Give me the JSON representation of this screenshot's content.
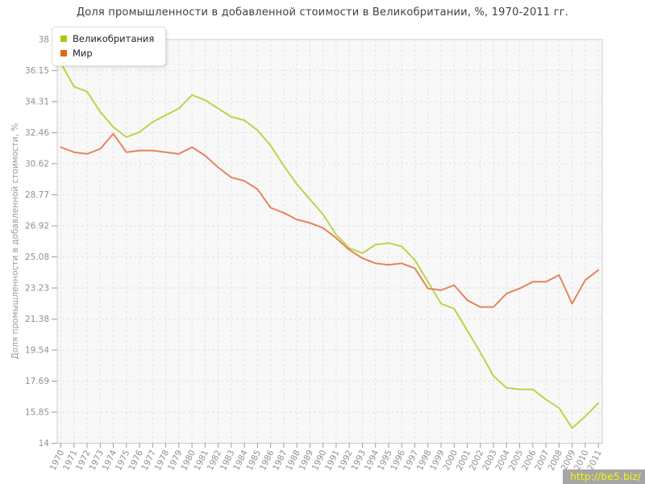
{
  "title": "Доля промышленности в добавленной стоимости в Великобритании, %, 1970-2011 гг.",
  "watermark": "http://be5.biz/",
  "legend": {
    "items": [
      {
        "label": "Великобритания"
      },
      {
        "label": "Мир"
      }
    ]
  },
  "colors": {
    "uk_line": "#bcd44b",
    "uk_swatch": "#a9c813",
    "world_line": "#e5845c",
    "world_swatch": "#e2641e",
    "plot_bg": "#f8f8f8",
    "plot_border": "#cccccc",
    "grid": "#e2e2e2",
    "tick": "#999999",
    "tick_label": "#909090",
    "axis_title": "#9a9a9a",
    "title_text": "#404040",
    "watermark_bg": "#a5a5a5",
    "watermark_text": "#f3f704"
  },
  "chart_data": {
    "type": "line",
    "title": "Доля промышленности в добавленной стоимости в Великобритании, %, 1970-2011 гг.",
    "xlabel": "",
    "ylabel": "Доля промышленности в добавленной стоимости, %",
    "ylim": [
      14,
      38
    ],
    "grid": true,
    "legend_position": "top-left",
    "yticks": [
      38,
      36.15,
      34.31,
      32.46,
      30.62,
      28.77,
      26.92,
      25.08,
      23.23,
      21.38,
      19.54,
      17.69,
      15.85,
      14
    ],
    "ytick_labels": [
      "38",
      "36.15",
      "34.31",
      "32.46",
      "30.62",
      "28.77",
      "26.92",
      "25.08",
      "23.23",
      "21.38",
      "19.54",
      "17.69",
      "15.85",
      "14"
    ],
    "x": [
      1970,
      1971,
      1972,
      1973,
      1974,
      1975,
      1976,
      1977,
      1978,
      1979,
      1980,
      1981,
      1982,
      1983,
      1984,
      1985,
      1986,
      1987,
      1988,
      1989,
      1990,
      1991,
      1992,
      1993,
      1994,
      1995,
      1996,
      1997,
      1998,
      1999,
      2000,
      2001,
      2002,
      2003,
      2004,
      2005,
      2006,
      2007,
      2008,
      2009,
      2010,
      2011
    ],
    "series": [
      {
        "name": "Великобритания",
        "values": [
          36.6,
          35.2,
          34.9,
          33.7,
          32.8,
          32.2,
          32.5,
          33.1,
          33.5,
          33.9,
          34.7,
          34.4,
          33.9,
          33.4,
          33.2,
          32.6,
          31.7,
          30.5,
          29.4,
          28.5,
          27.6,
          26.4,
          25.6,
          25.3,
          25.8,
          25.9,
          25.7,
          24.9,
          23.6,
          22.3,
          22.0,
          20.7,
          19.4,
          18.0,
          17.3,
          17.2,
          17.2,
          16.6,
          16.1,
          14.9,
          15.6,
          16.4
        ]
      },
      {
        "name": "Мир",
        "values": [
          31.6,
          31.3,
          31.2,
          31.5,
          32.4,
          31.3,
          31.4,
          31.4,
          31.3,
          31.2,
          31.6,
          31.1,
          30.4,
          29.8,
          29.6,
          29.1,
          28.0,
          27.7,
          27.3,
          27.1,
          26.8,
          26.2,
          25.5,
          25.0,
          24.7,
          24.6,
          24.7,
          24.4,
          23.2,
          23.1,
          23.4,
          22.5,
          22.1,
          22.1,
          22.9,
          23.2,
          23.6,
          23.6,
          24.0,
          22.3,
          23.7,
          24.3
        ]
      }
    ]
  }
}
